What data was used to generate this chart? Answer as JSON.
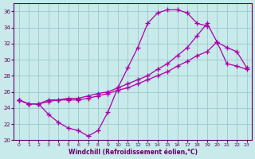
{
  "xlabel": "Windchill (Refroidissement éolien,°C)",
  "bg_color": "#c8eaea",
  "grid_color": "#9ec8c8",
  "line_color": "#aa00aa",
  "xlim": [
    -0.5,
    23.5
  ],
  "ylim": [
    20,
    37
  ],
  "yticks": [
    20,
    22,
    24,
    26,
    28,
    30,
    32,
    34,
    36
  ],
  "xticks": [
    0,
    1,
    2,
    3,
    4,
    5,
    6,
    7,
    8,
    9,
    10,
    11,
    12,
    13,
    14,
    15,
    16,
    17,
    18,
    19,
    20,
    21,
    22,
    23
  ],
  "line1_x": [
    0,
    1,
    2,
    3,
    4,
    5,
    6,
    7,
    8,
    9,
    10,
    11,
    12,
    13,
    14,
    15,
    16,
    17,
    18,
    19
  ],
  "line1_y": [
    25.0,
    24.5,
    24.5,
    23.2,
    22.2,
    21.5,
    21.2,
    20.5,
    21.2,
    23.5,
    26.5,
    29.0,
    31.5,
    34.5,
    35.8,
    36.2,
    36.2,
    35.8,
    34.5,
    34.2
  ],
  "line2_x": [
    0,
    1,
    2,
    3,
    4,
    5,
    6,
    7,
    8,
    9,
    10,
    11,
    12,
    13,
    14,
    15,
    16,
    17,
    18,
    19,
    20,
    21,
    22,
    23
  ],
  "line2_y": [
    25.0,
    24.5,
    24.5,
    25.0,
    25.0,
    25.0,
    25.0,
    25.2,
    25.5,
    25.8,
    26.2,
    26.5,
    27.0,
    27.5,
    28.0,
    28.5,
    29.2,
    29.8,
    30.5,
    31.0,
    32.2,
    29.5,
    29.2,
    28.8
  ],
  "line3_x": [
    0,
    1,
    2,
    3,
    4,
    5,
    6,
    7,
    8,
    9,
    10,
    11,
    12,
    13,
    14,
    15,
    16,
    17,
    18,
    19,
    20,
    21,
    22,
    23
  ],
  "line3_y": [
    25.0,
    24.5,
    24.5,
    24.8,
    25.0,
    25.2,
    25.2,
    25.5,
    25.8,
    26.0,
    26.5,
    27.0,
    27.5,
    28.0,
    28.8,
    29.5,
    30.5,
    31.5,
    33.0,
    34.5,
    32.2,
    31.5,
    31.0,
    29.0
  ]
}
